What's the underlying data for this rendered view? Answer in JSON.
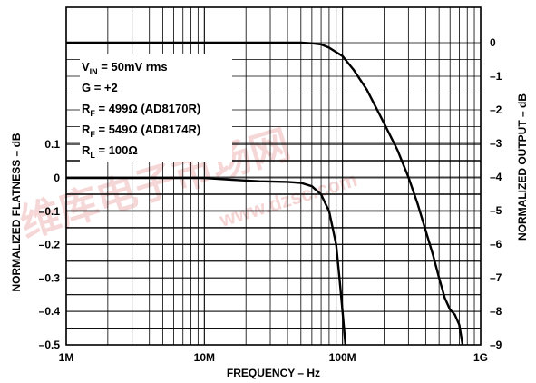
{
  "chart_data": {
    "type": "line",
    "xlabel": "FREQUENCY – Hz",
    "ylabel_left": "NORMALIZED FLATNESS – dB",
    "ylabel_right": "NORMALIZED OUTPUT – dB",
    "x_scale": "log",
    "xlim": [
      1000000,
      1000000000
    ],
    "ylim_left": [
      -0.5,
      0.1
    ],
    "ylim_right": [
      -9,
      0
    ],
    "grid": true,
    "x_ticks": [
      {
        "value": 1000000,
        "label": "1M"
      },
      {
        "value": 10000000,
        "label": "10M"
      },
      {
        "value": 100000000,
        "label": "100M"
      },
      {
        "value": 1000000000,
        "label": "1G"
      }
    ],
    "y_left_ticks": [
      {
        "value": 0.1,
        "label": "0.1"
      },
      {
        "value": 0,
        "label": "0"
      },
      {
        "value": -0.1,
        "label": "–0.1"
      },
      {
        "value": -0.2,
        "label": "–0.2"
      },
      {
        "value": -0.3,
        "label": "–0.3"
      },
      {
        "value": -0.4,
        "label": "–0.4"
      },
      {
        "value": -0.5,
        "label": "–0.5"
      }
    ],
    "y_right_ticks": [
      {
        "value": 0,
        "label": "0"
      },
      {
        "value": -1,
        "label": "–1"
      },
      {
        "value": -2,
        "label": "–2"
      },
      {
        "value": -3,
        "label": "–3"
      },
      {
        "value": -4,
        "label": "–4"
      },
      {
        "value": -5,
        "label": "–5"
      },
      {
        "value": -6,
        "label": "–6"
      },
      {
        "value": -7,
        "label": "–7"
      },
      {
        "value": -8,
        "label": "–8"
      },
      {
        "value": -9,
        "label": "–9"
      }
    ],
    "annotations": [
      {
        "main": "V",
        "sub": "IN",
        "rest": " = 50mV rms"
      },
      {
        "main": "G = +2",
        "sub": "",
        "rest": ""
      },
      {
        "main": "R",
        "sub": "F",
        "rest": " = 499Ω (AD8170R)"
      },
      {
        "main": "R",
        "sub": "F",
        "rest": " = 549Ω (AD8174R)"
      },
      {
        "main": "R",
        "sub": "L",
        "rest": " = 100Ω"
      }
    ],
    "series": [
      {
        "axis": "right",
        "points": [
          [
            1000000,
            0
          ],
          [
            20000000,
            0
          ],
          [
            50000000,
            0
          ],
          [
            60000000,
            -0.02
          ],
          [
            70000000,
            -0.05
          ],
          [
            80000000,
            -0.15
          ],
          [
            100000000,
            -0.4
          ],
          [
            120000000,
            -0.8
          ],
          [
            150000000,
            -1.4
          ],
          [
            200000000,
            -2.4
          ],
          [
            250000000,
            -3.2
          ],
          [
            300000000,
            -4.0
          ],
          [
            350000000,
            -4.8
          ],
          [
            400000000,
            -5.6
          ],
          [
            450000000,
            -6.3
          ],
          [
            500000000,
            -7.0
          ],
          [
            550000000,
            -7.6
          ],
          [
            600000000,
            -7.95
          ],
          [
            650000000,
            -8.1
          ],
          [
            700000000,
            -8.4
          ],
          [
            740000000,
            -9.0
          ]
        ]
      },
      {
        "axis": "left",
        "points": [
          [
            1000000,
            0
          ],
          [
            3000000,
            0
          ],
          [
            7000000,
            0
          ],
          [
            10000000,
            0
          ],
          [
            15000000,
            -0.005
          ],
          [
            25000000,
            -0.01
          ],
          [
            40000000,
            -0.012
          ],
          [
            50000000,
            -0.015
          ],
          [
            60000000,
            -0.025
          ],
          [
            70000000,
            -0.05
          ],
          [
            80000000,
            -0.1
          ],
          [
            90000000,
            -0.2
          ],
          [
            95000000,
            -0.3
          ],
          [
            100000000,
            -0.4
          ],
          [
            105000000,
            -0.5
          ]
        ]
      }
    ]
  },
  "watermark": {
    "cn_text": "维库电子市场网",
    "en_text": "www.dzsc.com",
    "color": "#f0b8b8"
  },
  "colors": {
    "grid": "#000000",
    "line": "#000000",
    "background": "#ffffff"
  }
}
